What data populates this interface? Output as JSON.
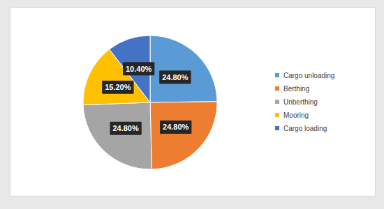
{
  "chart_data": {
    "type": "pie",
    "categories": [
      "Cargo unloading",
      "Berthing",
      "Unberthing",
      "Mooring",
      "Cargo loading"
    ],
    "values": [
      24.8,
      24.8,
      24.8,
      15.2,
      10.4
    ],
    "value_labels": [
      "24.80%",
      "24.80%",
      "24.80%",
      "15.20%",
      "10.40%"
    ],
    "colors": [
      "#5b9bd5",
      "#ed7d31",
      "#a5a5a5",
      "#ffc000",
      "#4472c4"
    ],
    "data_labels": true,
    "legend": "right"
  }
}
